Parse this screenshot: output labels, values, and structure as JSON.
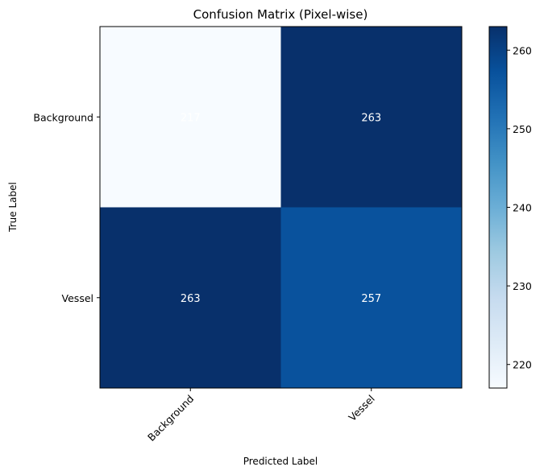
{
  "chart_data": {
    "type": "heatmap",
    "title": "Confusion Matrix (Pixel-wise)",
    "xlabel": "Predicted Label",
    "ylabel": "True Label",
    "x_categories": [
      "Background",
      "Vessel"
    ],
    "y_categories": [
      "Background",
      "Vessel"
    ],
    "values": [
      [
        217,
        263
      ],
      [
        263,
        257
      ]
    ],
    "cell_labels": [
      [
        "217",
        "263"
      ],
      [
        "263",
        "257"
      ]
    ],
    "colormap": "Blues",
    "color_range": [
      217,
      263
    ],
    "colorbar_ticks": [
      220,
      230,
      240,
      250,
      260
    ],
    "colorbar_tick_labels": [
      "220",
      "230",
      "240",
      "250",
      "260"
    ],
    "x_tick_rotation": -45,
    "grid": false
  }
}
